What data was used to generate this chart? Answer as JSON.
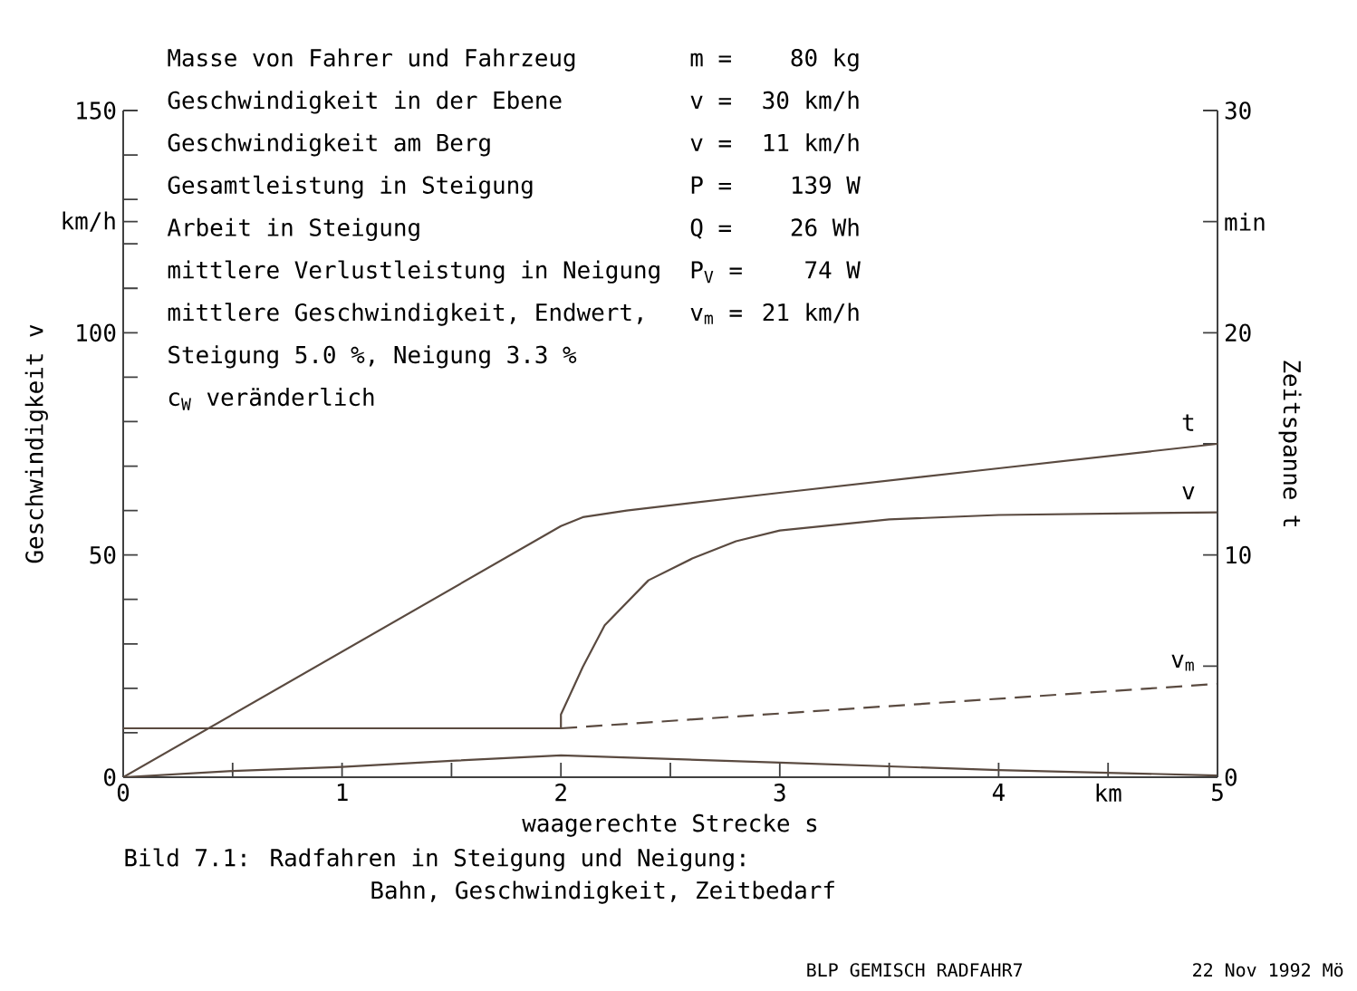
{
  "chart_data": {
    "type": "line",
    "xlabel": "waagerechte Strecke s",
    "ylabel": "Geschwindigkeit v",
    "y2label": "Zeitspanne t",
    "xlim": [
      0,
      5
    ],
    "ylim": [
      0,
      150
    ],
    "y2lim": [
      0,
      30
    ],
    "xticks": [
      0,
      {
        "value": 0.5,
        "label": null
      },
      1,
      {
        "value": 1.5,
        "label": null
      },
      2,
      {
        "value": 2.5,
        "label": null
      },
      3,
      {
        "value": 3.5,
        "label": null
      },
      4,
      {
        "value": 4.5,
        "label": "km"
      },
      5
    ],
    "yticks": [
      0,
      {
        "value": 10,
        "label": null
      },
      {
        "value": 20,
        "label": null
      },
      {
        "value": 30,
        "label": null
      },
      {
        "value": 40,
        "label": null
      },
      50,
      {
        "value": 60,
        "label": null
      },
      {
        "value": 70,
        "label": null
      },
      {
        "value": 80,
        "label": null
      },
      {
        "value": 90,
        "label": null
      },
      100,
      {
        "value": 110,
        "label": null
      },
      {
        "value": 120,
        "label": null
      },
      {
        "value": 125,
        "label": "km/h"
      },
      {
        "value": 130,
        "label": null
      },
      {
        "value": 140,
        "label": null
      },
      150
    ],
    "y2ticks": [
      0,
      {
        "value": 5,
        "label": null
      },
      10,
      {
        "value": 15,
        "label": null
      },
      20,
      {
        "value": 25,
        "label": "min"
      },
      30
    ],
    "series": [
      {
        "name": "t",
        "axis": "y2",
        "color": "#5a4a40",
        "x": [
          0,
          2,
          2.1,
          2.3,
          3,
          4,
          5
        ],
        "values": [
          0,
          11.3,
          11.7,
          12.0,
          12.8,
          13.9,
          15.0
        ]
      },
      {
        "name": "v",
        "color": "#5a4a40",
        "x": [
          0,
          2,
          2,
          2.1,
          2.2,
          2.4,
          2.6,
          2.8,
          3,
          3.5,
          4,
          5
        ],
        "values": [
          11,
          11,
          14.1,
          24.8,
          34.2,
          44.3,
          49.2,
          53.1,
          55.5,
          58,
          59,
          59.6
        ]
      },
      {
        "name": "v$_{m}$",
        "color": "#5a4a40",
        "line_style": "dashed",
        "x": [
          2,
          5
        ],
        "values": [
          11,
          21
        ]
      },
      {
        "color": "#5a4a40",
        "x": [
          0,
          0.5,
          1,
          1.5,
          2,
          3,
          4,
          5
        ],
        "values": [
          0,
          1.4,
          2.3,
          3.7,
          4.9,
          3.3,
          1.6,
          0.4
        ]
      }
    ],
    "annotations": [
      "Masse von Fahrer und Fahrzeug",
      "m =",
      "80 kg",
      "Geschwindigkeit in der Ebene",
      "v =",
      "30 km/h",
      "Geschwindigkeit am Berg",
      "v =",
      "11 km/h",
      "Gesamtleistung in Steigung",
      "P =",
      "139 W",
      "Arbeit in Steigung",
      "Q =",
      "26 Wh",
      "mittlere Verlustleistung in Neigung",
      "P$_{V}$ =",
      "74 W",
      "mittlere Geschwindigkeit, Endwert,",
      "v$_{m}$ =",
      "21 km/h",
      "Steigung 5.0 %, Neigung 3.3 %",
      "c$_{W}$ veränderlich",
      "Bild 7.1: Radfahren in Steigung und Neigung:",
      "Bahn, Geschwindigkeit, Zeitbedarf",
      "BLP GEMISCH RADFAHR7",
      "22 Nov 1992  Mö"
    ]
  }
}
